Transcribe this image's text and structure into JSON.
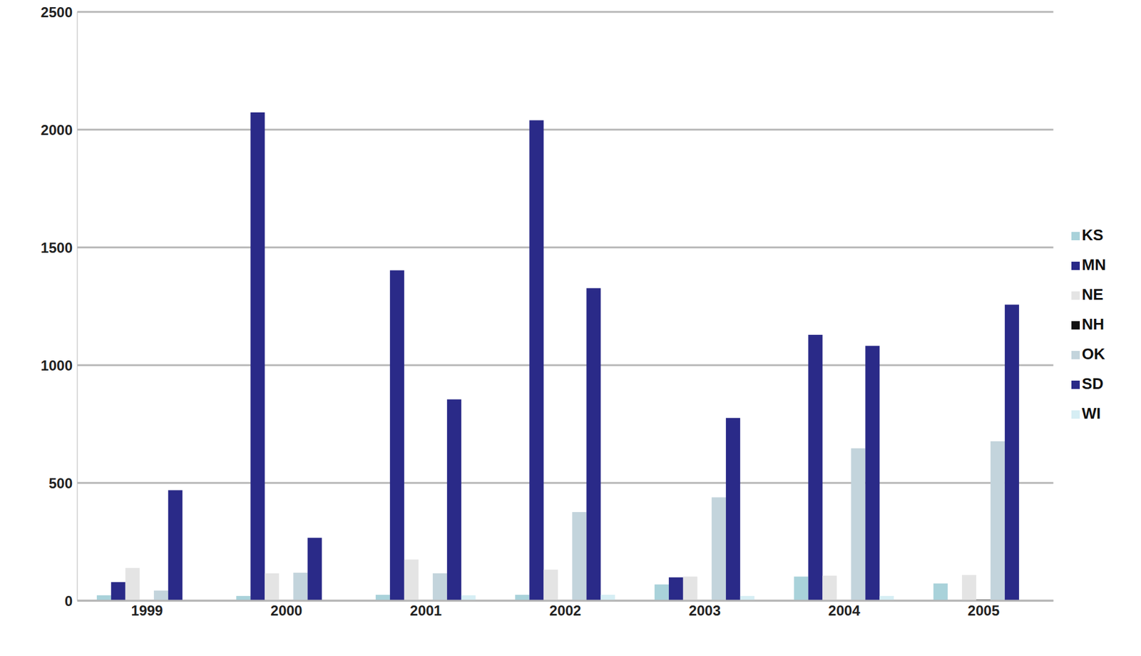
{
  "chart_data": {
    "type": "bar",
    "categories": [
      "1999",
      "2000",
      "2001",
      "2002",
      "2003",
      "2004",
      "2005"
    ],
    "series": [
      {
        "name": "KS",
        "color": "#a9d2da",
        "values": [
          23,
          20,
          25,
          25,
          69,
          102,
          73
        ]
      },
      {
        "name": "MN",
        "color": "#2a2a88",
        "values": [
          79,
          2073,
          1403,
          2040,
          99,
          1129,
          0
        ]
      },
      {
        "name": "NE",
        "color": "#e4e4e4",
        "values": [
          139,
          116,
          175,
          132,
          102,
          106,
          109
        ]
      },
      {
        "name": "NH",
        "color": "#111111",
        "values": [
          0,
          0,
          0,
          0,
          0,
          0,
          5
        ]
      },
      {
        "name": "OK",
        "color": "#c3d4dc",
        "values": [
          43,
          119,
          116,
          376,
          439,
          647,
          677
        ]
      },
      {
        "name": "SD",
        "color": "#2a2a88",
        "values": [
          469,
          267,
          855,
          1327,
          776,
          1082,
          1257
        ]
      },
      {
        "name": "WI",
        "color": "#d6eef4",
        "values": [
          0,
          0,
          23,
          25,
          20,
          20,
          0
        ]
      }
    ],
    "ylim": [
      0,
      2500
    ],
    "yticks": [
      0,
      500,
      1000,
      1500,
      2000,
      2500
    ],
    "grid": true,
    "legend": "right"
  }
}
